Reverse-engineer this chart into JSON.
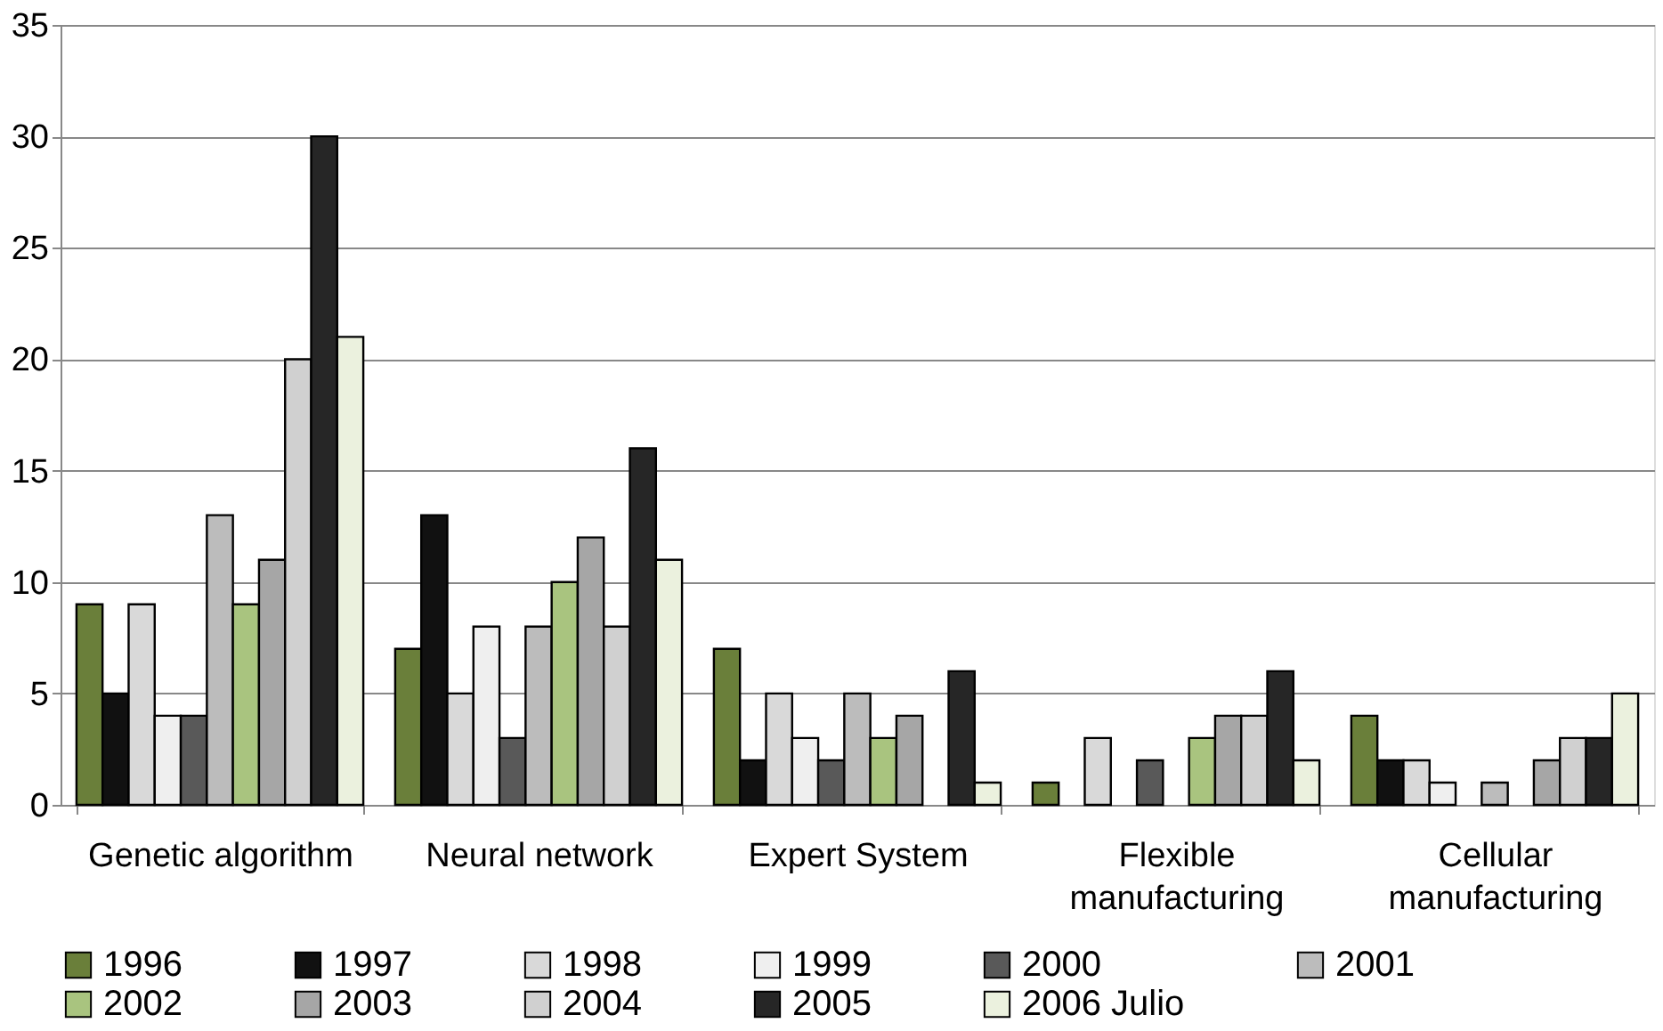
{
  "chart_data": {
    "type": "bar",
    "categories": [
      "Genetic algorithm",
      "Neural network",
      "Expert System",
      "Flexible manufacturing",
      "Cellular manufacturing"
    ],
    "series": [
      {
        "name": "1996",
        "color": "#6a7f3a",
        "values": [
          9,
          7,
          7,
          1,
          4
        ]
      },
      {
        "name": "1997",
        "color": "#111111",
        "values": [
          5,
          13,
          2,
          0,
          2
        ]
      },
      {
        "name": "1998",
        "color": "#d9d9d9",
        "values": [
          9,
          5,
          5,
          3,
          2
        ]
      },
      {
        "name": "1999",
        "color": "#efefef",
        "values": [
          4,
          8,
          3,
          0,
          1
        ]
      },
      {
        "name": "2000",
        "color": "#595959",
        "values": [
          4,
          3,
          2,
          2,
          0
        ]
      },
      {
        "name": "2001",
        "color": "#bcbcbc",
        "values": [
          13,
          8,
          5,
          0,
          1
        ]
      },
      {
        "name": "2002",
        "color": "#a9c47f",
        "values": [
          9,
          10,
          3,
          3,
          0
        ]
      },
      {
        "name": "2003",
        "color": "#a6a6a6",
        "values": [
          11,
          12,
          4,
          4,
          2
        ]
      },
      {
        "name": "2004",
        "color": "#d0d0d0",
        "values": [
          20,
          8,
          0,
          4,
          3
        ]
      },
      {
        "name": "2005",
        "color": "#262626",
        "values": [
          30,
          16,
          6,
          6,
          3
        ]
      },
      {
        "name": "2006 Julio",
        "color": "#ebf1de",
        "values": [
          21,
          11,
          1,
          2,
          5
        ]
      }
    ],
    "ylim": [
      0,
      35
    ],
    "yticks": [
      0,
      5,
      10,
      15,
      20,
      25,
      30,
      35
    ],
    "grid": "y",
    "legend": "bottom"
  }
}
